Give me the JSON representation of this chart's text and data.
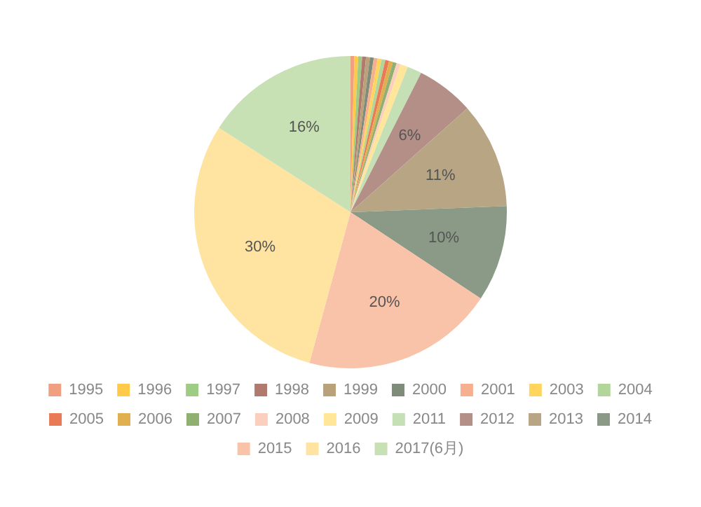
{
  "chart_data": {
    "type": "pie",
    "categories": [
      "1995",
      "1996",
      "1997",
      "1998",
      "1999",
      "2000",
      "2001",
      "2003",
      "2004",
      "2005",
      "2006",
      "2007",
      "2008",
      "2009",
      "2011",
      "2012",
      "2013",
      "2014",
      "2015",
      "2016",
      "2017(6月)"
    ],
    "values": [
      0.4,
      0.4,
      0.4,
      0.4,
      0.4,
      0.4,
      0.4,
      0.4,
      0.4,
      0.4,
      0.4,
      0.4,
      0.4,
      0.8,
      1.5,
      6,
      11,
      10,
      20,
      30,
      16
    ],
    "value_labels": [
      null,
      null,
      null,
      null,
      null,
      null,
      null,
      null,
      null,
      null,
      null,
      null,
      null,
      null,
      null,
      "6%",
      "11%",
      "10%",
      "20%",
      "30%",
      "16%"
    ],
    "colors": [
      "#f0a080",
      "#ffc94a",
      "#9fcc84",
      "#b07a6e",
      "#b9a27a",
      "#7f8c7a",
      "#f6b090",
      "#ffd55e",
      "#b2d69a",
      "#ea7a56",
      "#e0b050",
      "#8fb070",
      "#fbcfbe",
      "#ffe699",
      "#c5e0b4",
      "#b38f88",
      "#b8a584",
      "#8a9a86",
      "#f8c3a8",
      "#ffe3a0",
      "#c7e1b5"
    ],
    "legend": "bottom"
  }
}
